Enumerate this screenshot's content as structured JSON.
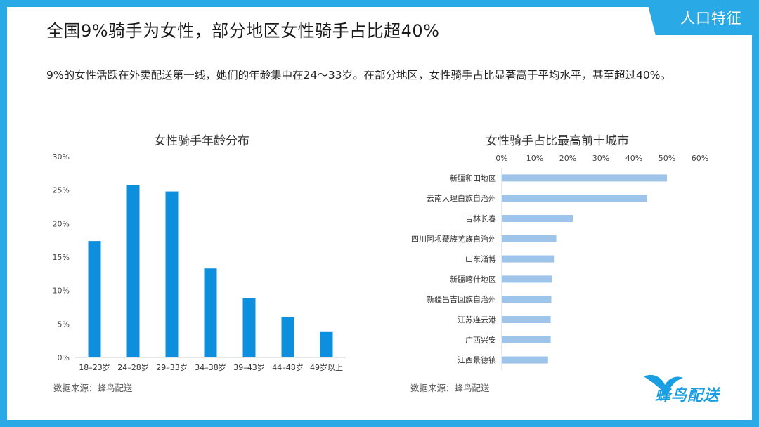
{
  "header": {
    "title": "全国9%骑手为女性，部分地区女性骑手占比超40%",
    "tag": "人口特征"
  },
  "intro": "9%的女性活跃在外卖配送第一线，她们的年龄集中在24～33岁。在部分地区，女性骑手占比显著高于平均水平，甚至超过40%。",
  "colors": {
    "accent": "#29a9e6",
    "bar_left": "#0e8fdd",
    "bar_right": "#9fc4ea"
  },
  "logo_text": "蜂鸟配送",
  "chart_data": [
    {
      "type": "bar",
      "title": "女性骑手年龄分布",
      "categories": [
        "18–23岁",
        "24–28岁",
        "29–33岁",
        "34–38岁",
        "39–43岁",
        "44–48岁",
        "49岁以上"
      ],
      "values": [
        17.4,
        25.7,
        24.8,
        13.3,
        8.9,
        6.0,
        3.8
      ],
      "yticks": [
        "0%",
        "5%",
        "10%",
        "15%",
        "20%",
        "25%",
        "30%"
      ],
      "ylim": [
        0,
        30
      ],
      "source": "数据来源：蜂鸟配送"
    },
    {
      "type": "bar",
      "orientation": "horizontal",
      "title": "女性骑手占比最高前十城市",
      "categories": [
        "新疆和田地区",
        "云南大理白族自治州",
        "吉林长春",
        "四川阿坝藏族羌族自治州",
        "山东淄博",
        "新疆喀什地区",
        "新疆昌吉回族自治州",
        "江苏连云港",
        "广西兴安",
        "江西景德镇"
      ],
      "values": [
        50,
        44,
        21.5,
        16.5,
        16,
        15.3,
        15,
        14.8,
        14.8,
        14
      ],
      "xticks": [
        "0%",
        "10%",
        "20%",
        "30%",
        "40%",
        "50%",
        "60%"
      ],
      "xlim": [
        0,
        60
      ],
      "source": "数据来源：蜂鸟配送"
    }
  ]
}
